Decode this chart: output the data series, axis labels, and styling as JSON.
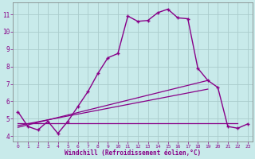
{
  "xlabel": "Windchill (Refroidissement éolien,°C)",
  "background_color": "#c8eaea",
  "line_color": "#880088",
  "grid_color": "#aacccc",
  "xlim": [
    -0.5,
    23.5
  ],
  "ylim": [
    3.7,
    11.7
  ],
  "yticks": [
    4,
    5,
    6,
    7,
    8,
    9,
    10,
    11
  ],
  "xticks": [
    0,
    1,
    2,
    3,
    4,
    5,
    6,
    7,
    8,
    9,
    10,
    11,
    12,
    13,
    14,
    15,
    16,
    17,
    18,
    19,
    20,
    21,
    22,
    23
  ],
  "line1_x": [
    0,
    1,
    2,
    3,
    4,
    5,
    6,
    7,
    8,
    9,
    10,
    11,
    12,
    13,
    14,
    15,
    16,
    17,
    18,
    19,
    20,
    21,
    22,
    23
  ],
  "line1_y": [
    5.4,
    4.55,
    4.35,
    4.85,
    4.15,
    4.85,
    5.7,
    6.55,
    7.6,
    8.5,
    8.75,
    10.9,
    10.6,
    10.65,
    11.1,
    11.3,
    10.8,
    10.75,
    7.9,
    7.2,
    6.8,
    4.55,
    4.45,
    4.7
  ],
  "line2_x": [
    0,
    22
  ],
  "line2_y": [
    4.75,
    4.75
  ],
  "line3_x": [
    0,
    19
  ],
  "line3_y": [
    4.6,
    6.7
  ],
  "line4_x": [
    0,
    19
  ],
  "line4_y": [
    4.5,
    7.2
  ]
}
